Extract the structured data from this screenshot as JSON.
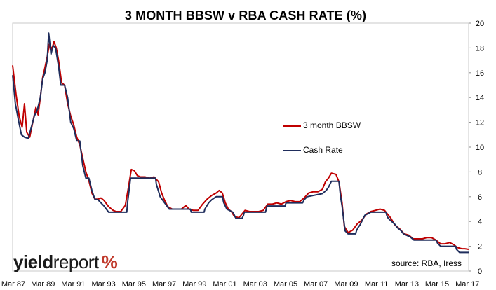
{
  "chart_data": {
    "type": "line",
    "title": "3 MONTH BBSW v RBA CASH RATE (%)",
    "xlabel": "",
    "ylabel": "",
    "x_range": [
      1987.17,
      2017.25
    ],
    "ylim": [
      0,
      20
    ],
    "y_ticks": [
      0,
      2,
      4,
      6,
      8,
      10,
      12,
      14,
      16,
      18,
      20
    ],
    "y_axis_side": "right",
    "x_tick_labels": [
      "Mar 87",
      "Mar 89",
      "Mar 91",
      "Mar 93",
      "Mar 95",
      "Mar 97",
      "Mar 99",
      "Mar 01",
      "Mar 03",
      "Mar 05",
      "Mar 07",
      "Mar 09",
      "Mar 11",
      "Mar 13",
      "Mar 15",
      "Mar 17"
    ],
    "x_tick_years": [
      1987.17,
      1989.17,
      1991.17,
      1993.17,
      1995.17,
      1997.17,
      1999.17,
      2001.17,
      2003.17,
      2005.17,
      2007.17,
      2009.17,
      2011.17,
      2013.17,
      2015.17,
      2017.17
    ],
    "grid": false,
    "legend_placement": "center-right",
    "series": [
      {
        "name": "3 month BBSW",
        "color": "#c00000",
        "points": [
          [
            1987.17,
            16.6
          ],
          [
            1987.4,
            14.2
          ],
          [
            1987.6,
            12.5
          ],
          [
            1987.8,
            11.6
          ],
          [
            1987.95,
            13.5
          ],
          [
            1988.1,
            11.2
          ],
          [
            1988.3,
            10.8
          ],
          [
            1988.5,
            12.0
          ],
          [
            1988.7,
            13.2
          ],
          [
            1988.85,
            12.6
          ],
          [
            1989.0,
            14.0
          ],
          [
            1989.15,
            15.6
          ],
          [
            1989.3,
            16.4
          ],
          [
            1989.45,
            17.3
          ],
          [
            1989.6,
            18.3
          ],
          [
            1989.75,
            17.9
          ],
          [
            1989.9,
            18.5
          ],
          [
            1990.05,
            18.0
          ],
          [
            1990.2,
            17.0
          ],
          [
            1990.4,
            15.2
          ],
          [
            1990.6,
            15.0
          ],
          [
            1990.8,
            13.5
          ],
          [
            1991.0,
            12.5
          ],
          [
            1991.2,
            11.8
          ],
          [
            1991.4,
            10.8
          ],
          [
            1991.6,
            10.2
          ],
          [
            1991.8,
            9.1
          ],
          [
            1992.0,
            8.0
          ],
          [
            1992.2,
            7.3
          ],
          [
            1992.4,
            6.3
          ],
          [
            1992.6,
            5.8
          ],
          [
            1992.8,
            5.8
          ],
          [
            1993.0,
            5.9
          ],
          [
            1993.2,
            5.7
          ],
          [
            1993.5,
            5.2
          ],
          [
            1993.8,
            4.9
          ],
          [
            1994.0,
            4.8
          ],
          [
            1994.3,
            4.8
          ],
          [
            1994.6,
            5.3
          ],
          [
            1994.8,
            6.7
          ],
          [
            1995.0,
            8.2
          ],
          [
            1995.2,
            8.1
          ],
          [
            1995.4,
            7.7
          ],
          [
            1995.6,
            7.6
          ],
          [
            1995.9,
            7.6
          ],
          [
            1996.2,
            7.5
          ],
          [
            1996.5,
            7.6
          ],
          [
            1996.8,
            7.2
          ],
          [
            1997.0,
            6.3
          ],
          [
            1997.2,
            5.7
          ],
          [
            1997.4,
            5.2
          ],
          [
            1997.7,
            5.0
          ],
          [
            1998.0,
            5.0
          ],
          [
            1998.3,
            5.0
          ],
          [
            1998.6,
            5.3
          ],
          [
            1998.8,
            5.0
          ],
          [
            1999.1,
            4.9
          ],
          [
            1999.4,
            4.9
          ],
          [
            1999.7,
            5.4
          ],
          [
            2000.0,
            5.8
          ],
          [
            2000.3,
            6.1
          ],
          [
            2000.6,
            6.3
          ],
          [
            2000.8,
            6.5
          ],
          [
            2001.0,
            6.3
          ],
          [
            2001.2,
            5.5
          ],
          [
            2001.4,
            5.0
          ],
          [
            2001.6,
            4.8
          ],
          [
            2001.8,
            4.4
          ],
          [
            2002.1,
            4.3
          ],
          [
            2002.3,
            4.6
          ],
          [
            2002.5,
            4.9
          ],
          [
            2002.8,
            4.8
          ],
          [
            2003.1,
            4.8
          ],
          [
            2003.4,
            4.8
          ],
          [
            2003.7,
            4.9
          ],
          [
            2004.0,
            5.4
          ],
          [
            2004.3,
            5.4
          ],
          [
            2004.6,
            5.5
          ],
          [
            2004.9,
            5.4
          ],
          [
            2005.2,
            5.6
          ],
          [
            2005.5,
            5.7
          ],
          [
            2005.8,
            5.6
          ],
          [
            2006.1,
            5.6
          ],
          [
            2006.4,
            5.9
          ],
          [
            2006.7,
            6.3
          ],
          [
            2007.0,
            6.4
          ],
          [
            2007.3,
            6.4
          ],
          [
            2007.6,
            6.6
          ],
          [
            2007.8,
            7.2
          ],
          [
            2008.0,
            7.5
          ],
          [
            2008.2,
            7.9
          ],
          [
            2008.5,
            7.8
          ],
          [
            2008.7,
            7.2
          ],
          [
            2008.9,
            5.5
          ],
          [
            2009.05,
            3.6
          ],
          [
            2009.3,
            3.1
          ],
          [
            2009.6,
            3.3
          ],
          [
            2009.9,
            3.8
          ],
          [
            2010.2,
            4.1
          ],
          [
            2010.5,
            4.6
          ],
          [
            2010.8,
            4.8
          ],
          [
            2011.1,
            4.9
          ],
          [
            2011.4,
            5.0
          ],
          [
            2011.7,
            4.9
          ],
          [
            2011.9,
            4.6
          ],
          [
            2012.1,
            4.3
          ],
          [
            2012.4,
            3.7
          ],
          [
            2012.7,
            3.4
          ],
          [
            2013.0,
            3.0
          ],
          [
            2013.3,
            2.9
          ],
          [
            2013.6,
            2.6
          ],
          [
            2013.9,
            2.6
          ],
          [
            2014.2,
            2.6
          ],
          [
            2014.5,
            2.7
          ],
          [
            2014.8,
            2.7
          ],
          [
            2015.1,
            2.5
          ],
          [
            2015.4,
            2.2
          ],
          [
            2015.7,
            2.2
          ],
          [
            2016.0,
            2.3
          ],
          [
            2016.3,
            2.1
          ],
          [
            2016.5,
            1.9
          ],
          [
            2016.8,
            1.8
          ],
          [
            2017.0,
            1.8
          ],
          [
            2017.25,
            1.75
          ]
        ]
      },
      {
        "name": "Cash Rate",
        "color": "#1f2d5c",
        "points": [
          [
            1987.17,
            15.8
          ],
          [
            1987.35,
            13.5
          ],
          [
            1987.55,
            12.2
          ],
          [
            1987.75,
            11.0
          ],
          [
            1987.95,
            10.8
          ],
          [
            1988.2,
            10.7
          ],
          [
            1988.4,
            11.6
          ],
          [
            1988.6,
            12.5
          ],
          [
            1988.8,
            13.0
          ],
          [
            1989.0,
            14.0
          ],
          [
            1989.15,
            15.5
          ],
          [
            1989.3,
            16.0
          ],
          [
            1989.45,
            17.0
          ],
          [
            1989.55,
            19.2
          ],
          [
            1989.7,
            17.5
          ],
          [
            1989.85,
            18.2
          ],
          [
            1990.0,
            18.0
          ],
          [
            1990.2,
            16.5
          ],
          [
            1990.35,
            15.0
          ],
          [
            1990.6,
            15.0
          ],
          [
            1990.8,
            14.0
          ],
          [
            1991.0,
            12.0
          ],
          [
            1991.2,
            11.5
          ],
          [
            1991.4,
            10.5
          ],
          [
            1991.6,
            10.5
          ],
          [
            1991.8,
            8.5
          ],
          [
            1992.0,
            7.5
          ],
          [
            1992.2,
            7.5
          ],
          [
            1992.4,
            6.5
          ],
          [
            1992.6,
            5.8
          ],
          [
            1992.8,
            5.75
          ],
          [
            1993.2,
            5.25
          ],
          [
            1993.5,
            4.75
          ],
          [
            1994.7,
            4.75
          ],
          [
            1994.75,
            5.5
          ],
          [
            1994.85,
            6.5
          ],
          [
            1994.95,
            7.5
          ],
          [
            1996.6,
            7.5
          ],
          [
            1996.65,
            7.0
          ],
          [
            1996.9,
            6.0
          ],
          [
            1997.2,
            5.5
          ],
          [
            1997.5,
            5.0
          ],
          [
            1998.9,
            5.0
          ],
          [
            1998.95,
            4.75
          ],
          [
            1999.8,
            4.75
          ],
          [
            1999.85,
            5.0
          ],
          [
            2000.1,
            5.5
          ],
          [
            2000.3,
            5.75
          ],
          [
            2000.6,
            6.0
          ],
          [
            2001.0,
            6.0
          ],
          [
            2001.1,
            5.5
          ],
          [
            2001.3,
            5.0
          ],
          [
            2001.7,
            4.75
          ],
          [
            2001.9,
            4.25
          ],
          [
            2002.3,
            4.25
          ],
          [
            2002.4,
            4.5
          ],
          [
            2002.45,
            4.75
          ],
          [
            2003.85,
            4.75
          ],
          [
            2003.9,
            5.0
          ],
          [
            2003.95,
            5.25
          ],
          [
            2005.15,
            5.25
          ],
          [
            2005.2,
            5.5
          ],
          [
            2006.3,
            5.5
          ],
          [
            2006.4,
            5.75
          ],
          [
            2006.6,
            6.0
          ],
          [
            2007.6,
            6.25
          ],
          [
            2007.85,
            6.5
          ],
          [
            2008.0,
            6.75
          ],
          [
            2008.2,
            7.25
          ],
          [
            2008.7,
            7.25
          ],
          [
            2008.8,
            6.0
          ],
          [
            2008.9,
            5.25
          ],
          [
            2009.0,
            4.25
          ],
          [
            2009.1,
            3.25
          ],
          [
            2009.3,
            3.0
          ],
          [
            2009.8,
            3.0
          ],
          [
            2009.85,
            3.25
          ],
          [
            2009.95,
            3.5
          ],
          [
            2010.1,
            3.75
          ],
          [
            2010.3,
            4.25
          ],
          [
            2010.4,
            4.5
          ],
          [
            2010.8,
            4.75
          ],
          [
            2011.8,
            4.75
          ],
          [
            2011.85,
            4.5
          ],
          [
            2011.95,
            4.25
          ],
          [
            2012.4,
            3.75
          ],
          [
            2012.55,
            3.5
          ],
          [
            2012.8,
            3.25
          ],
          [
            2012.95,
            3.0
          ],
          [
            2013.4,
            2.75
          ],
          [
            2013.65,
            2.5
          ],
          [
            2015.1,
            2.5
          ],
          [
            2015.2,
            2.25
          ],
          [
            2015.4,
            2.0
          ],
          [
            2016.4,
            2.0
          ],
          [
            2016.45,
            1.75
          ],
          [
            2016.65,
            1.5
          ],
          [
            2017.25,
            1.5
          ]
        ]
      }
    ]
  },
  "legend": {
    "bbsw_label": "3 month BBSW",
    "cash_label": "Cash Rate"
  },
  "brand": {
    "part1": "yield",
    "part2": "report",
    "part3": "%"
  },
  "source_note": "source: RBA, Iress"
}
